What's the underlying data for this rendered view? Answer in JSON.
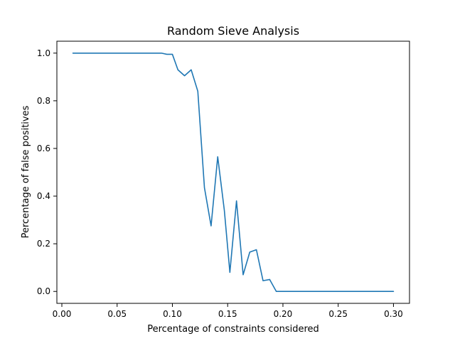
{
  "chart_data": {
    "type": "line",
    "title": "Random Sieve Analysis",
    "xlabel": "Percentage of constraints considered",
    "ylabel": "Percentage of false positives",
    "xlim": [
      -0.0045,
      0.3145
    ],
    "ylim": [
      -0.05,
      1.05
    ],
    "xticks": [
      0.0,
      0.05,
      0.1,
      0.15,
      0.2,
      0.25,
      0.3
    ],
    "xtick_labels": [
      "0.00",
      "0.05",
      "0.10",
      "0.15",
      "0.20",
      "0.25",
      "0.30"
    ],
    "yticks": [
      0.0,
      0.2,
      0.4,
      0.6,
      0.8,
      1.0
    ],
    "ytick_labels": [
      "0.0",
      "0.2",
      "0.4",
      "0.6",
      "0.8",
      "1.0"
    ],
    "grid": false,
    "series": [
      {
        "color": "#1f77b4",
        "x": [
          0.01,
          0.015,
          0.02,
          0.025,
          0.03,
          0.035,
          0.04,
          0.045,
          0.05,
          0.055,
          0.06,
          0.065,
          0.07,
          0.075,
          0.08,
          0.085,
          0.09,
          0.095,
          0.1,
          0.105,
          0.111,
          0.117,
          0.123,
          0.129,
          0.135,
          0.141,
          0.147,
          0.152,
          0.158,
          0.164,
          0.17,
          0.176,
          0.182,
          0.188,
          0.194,
          0.2,
          0.21,
          0.22,
          0.23,
          0.24,
          0.25,
          0.26,
          0.27,
          0.28,
          0.29,
          0.3
        ],
        "y": [
          1.0,
          1.0,
          1.0,
          1.0,
          1.0,
          1.0,
          1.0,
          1.0,
          1.0,
          1.0,
          1.0,
          1.0,
          1.0,
          1.0,
          1.0,
          1.0,
          1.0,
          0.995,
          0.995,
          0.93,
          0.905,
          0.93,
          0.84,
          0.435,
          0.275,
          0.565,
          0.34,
          0.08,
          0.38,
          0.07,
          0.165,
          0.175,
          0.045,
          0.05,
          0.0,
          0.0,
          0.0,
          0.0,
          0.0,
          0.0,
          0.0,
          0.0,
          0.0,
          0.0,
          0.0,
          0.0
        ]
      }
    ]
  }
}
